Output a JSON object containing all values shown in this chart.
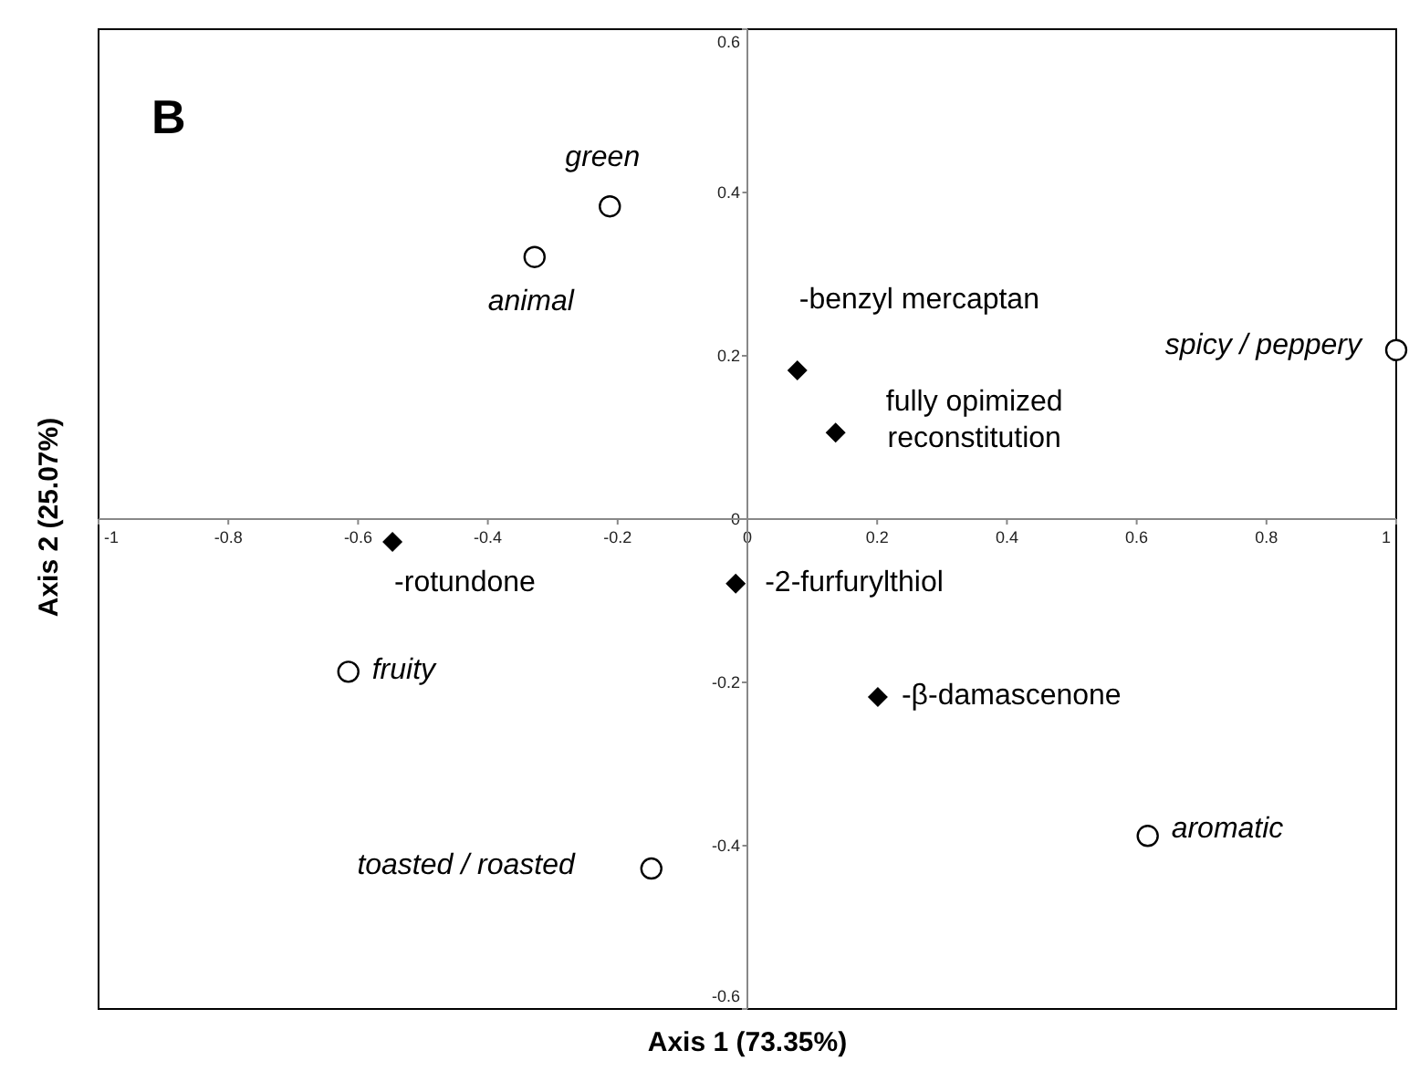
{
  "chart_data": {
    "type": "scatter",
    "xlabel": "Axis 1 (73.35%)",
    "ylabel": "Axis 2 (25.07%)",
    "series": [
      {
        "type": "scatter",
        "marker": "circle",
        "color": "#000000",
        "x": [
          -0.212,
          -0.328,
          1.0,
          -0.615,
          -0.148,
          0.617
        ],
        "values": [
          0.383,
          0.321,
          0.207,
          -0.187,
          -0.428,
          -0.388
        ]
      },
      {
        "type": "scatter",
        "marker": "diamond",
        "color": "#000000",
        "x": [
          0.077,
          0.136,
          -0.547,
          -0.018,
          0.201
        ],
        "values": [
          0.182,
          0.106,
          -0.028,
          -0.079,
          -0.218
        ]
      }
    ],
    "annotations": [
      "B",
      {
        "text": "green",
        "x": -0.212,
        "y": 0.383
      },
      {
        "text": "animal",
        "x": -0.328,
        "y": 0.321
      },
      {
        "text": "-benzyl mercaptan",
        "x": 0.077,
        "y": 0.182
      },
      {
        "text": "spicy / peppery",
        "x": 1.0,
        "y": 0.207
      },
      {
        "text": "fully opimized reconstitution",
        "x": 0.136,
        "y": 0.106
      },
      {
        "text": "-rotundone",
        "x": -0.547,
        "y": -0.028
      },
      {
        "text": "-2-furfurylthiol",
        "x": -0.018,
        "y": -0.079
      },
      {
        "text": "fruity",
        "x": -0.615,
        "y": -0.187
      },
      {
        "text": "-β-damascenone",
        "x": 0.201,
        "y": -0.218
      },
      {
        "text": "toasted / roasted",
        "x": -0.148,
        "y": -0.428
      },
      {
        "text": "aromatic",
        "x": 0.617,
        "y": -0.388
      }
    ],
    "xlim": [
      -1,
      1
    ],
    "xticks": [
      -1,
      -0.8,
      -0.6,
      -0.4,
      -0.2,
      0,
      0.2,
      0.4,
      0.6,
      0.8,
      1
    ],
    "ylim": [
      -0.6,
      0.6
    ],
    "yticks": [
      -0.6,
      -0.4,
      -0.2,
      0,
      0.2,
      0.4,
      0.6
    ],
    "grid": false,
    "legend": false
  }
}
